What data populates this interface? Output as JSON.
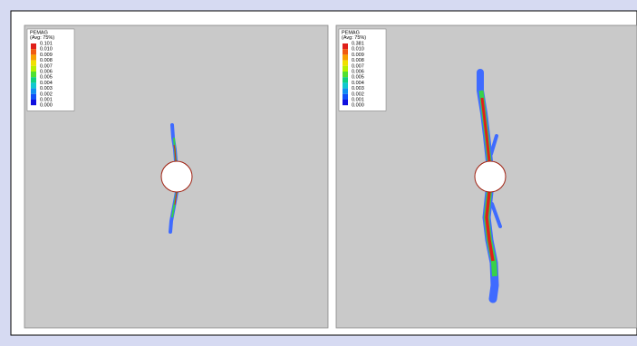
{
  "panels": [
    {
      "legend_title": "PEMAG",
      "legend_subtitle": "(Avg: 75%)",
      "legend_values": [
        "0.101",
        "0.010",
        "0.009",
        "0.008",
        "0.007",
        "0.006",
        "0.005",
        "0.004",
        "0.003",
        "0.002",
        "0.001",
        "0.000"
      ]
    },
    {
      "legend_title": "PEMAG",
      "legend_subtitle": "(Avg: 75%)",
      "legend_values": [
        "0.381",
        "0.010",
        "0.009",
        "0.008",
        "0.007",
        "0.006",
        "0.005",
        "0.004",
        "0.003",
        "0.002",
        "0.001",
        "0.000"
      ]
    }
  ]
}
